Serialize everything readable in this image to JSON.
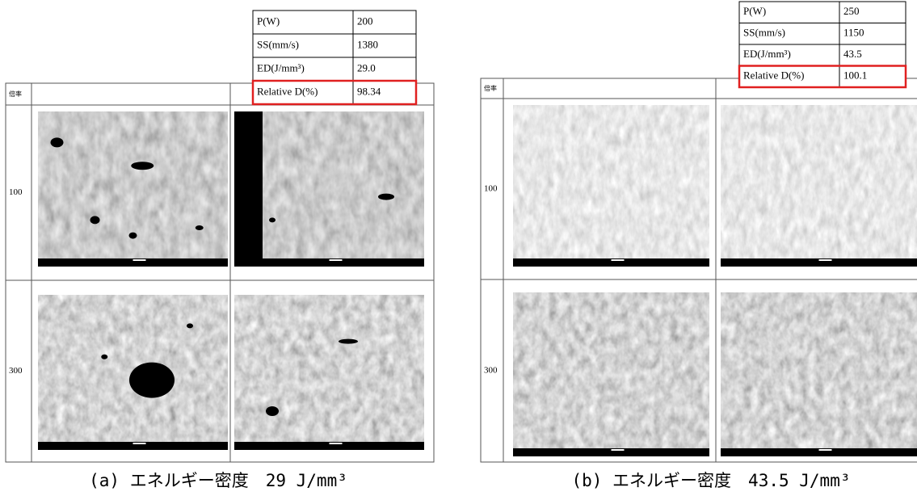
{
  "panels": [
    {
      "params": [
        [
          "P(W)",
          "200"
        ],
        [
          "SS(mm/s)",
          "1380"
        ],
        [
          "ED(J/mm³)",
          "29.0"
        ],
        [
          "Relative D(%)",
          "98.34"
        ]
      ],
      "corner_label": "倍率",
      "magnifications": [
        "100",
        "300"
      ],
      "caption": "(a) エネルギー密度　29 J/mm³"
    },
    {
      "params": [
        [
          "P(W)",
          "250"
        ],
        [
          "SS(mm/s)",
          "1150"
        ],
        [
          "ED(J/mm³)",
          "43.5"
        ],
        [
          "Relative D(%)",
          "100.1"
        ]
      ],
      "corner_label": "倍率",
      "magnifications": [
        "100",
        "300"
      ],
      "caption": "(b) エネルギー密度　43.5 J/mm³"
    }
  ]
}
